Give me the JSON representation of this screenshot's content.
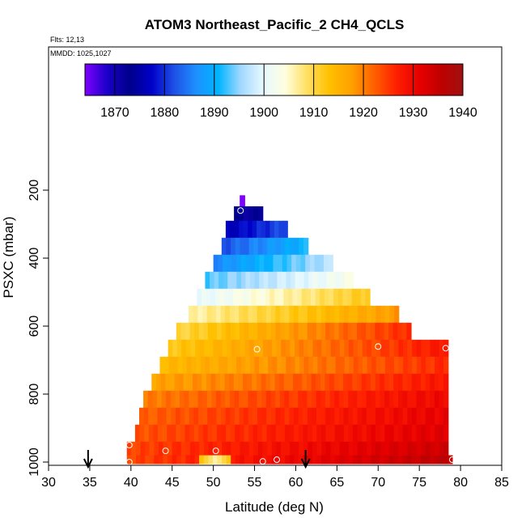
{
  "chart_data": {
    "type": "heatmap",
    "title": "ATOM3 Northeast_Pacific_2 CH4_QCLS",
    "flights_label": "Flts: 12,13",
    "mmdd_label": "MMDD: 1025,1027",
    "xlabel": "Latitude (deg N)",
    "ylabel": "PSXC (mbar)",
    "xlim": [
      30,
      85
    ],
    "ylim": [
      1000,
      50
    ],
    "y_reversed": true,
    "x_ticks": [
      "30",
      "35",
      "40",
      "45",
      "50",
      "55",
      "60",
      "65",
      "70",
      "75",
      "80",
      "85"
    ],
    "y_ticks": [
      "200",
      "400",
      "600",
      "800",
      "1000"
    ],
    "colorbar": {
      "range": [
        1864,
        1940
      ],
      "ticks": [
        "1870",
        "1880",
        "1890",
        "1900",
        "1910",
        "1920",
        "1930",
        "1940"
      ],
      "colors": [
        "#7f00ff",
        "#1a00c8",
        "#00008b",
        "#0000c8",
        "#1e50e6",
        "#1e90ff",
        "#00b4ff",
        "#a0d8ff",
        "#e6f8ff",
        "#ffffe0",
        "#ffe060",
        "#ffc000",
        "#ffa000",
        "#ff6000",
        "#ff2000",
        "#e80000",
        "#c00000",
        "#a01010"
      ]
    },
    "bands": [
      {
        "p": 230,
        "lat": [
          53.2,
          53.8
        ],
        "ch4": [
          1864,
          1864
        ]
      },
      {
        "p": 265,
        "lat": [
          52.5,
          56.0
        ],
        "ch4": [
          1872,
          1872
        ]
      },
      {
        "p": 315,
        "lat": [
          51.5,
          59.0
        ],
        "ch4": [
          1876,
          1882
        ]
      },
      {
        "p": 365,
        "lat": [
          51.0,
          61.5
        ],
        "ch4": [
          1882,
          1891
        ]
      },
      {
        "p": 415,
        "lat": [
          50.0,
          64.5
        ],
        "ch4": [
          1886,
          1897
        ]
      },
      {
        "p": 465,
        "lat": [
          49.0,
          67.0
        ],
        "ch4": [
          1893,
          1903
        ]
      },
      {
        "p": 515,
        "lat": [
          48.0,
          69.0
        ],
        "ch4": [
          1900,
          1912
        ]
      },
      {
        "p": 565,
        "lat": [
          47.0,
          72.5
        ],
        "ch4": [
          1906,
          1918
        ]
      },
      {
        "p": 615,
        "lat": [
          45.5,
          74.0
        ],
        "ch4": [
          1910,
          1926
        ]
      },
      {
        "p": 665,
        "lat": [
          44.5,
          78.5
        ],
        "ch4": [
          1912,
          1928
        ]
      },
      {
        "p": 715,
        "lat": [
          43.5,
          78.5
        ],
        "ch4": [
          1914,
          1926
        ]
      },
      {
        "p": 765,
        "lat": [
          42.5,
          78.5
        ],
        "ch4": [
          1917,
          1928
        ]
      },
      {
        "p": 815,
        "lat": [
          41.5,
          78.5
        ],
        "ch4": [
          1920,
          1930
        ]
      },
      {
        "p": 865,
        "lat": [
          41.0,
          78.5
        ],
        "ch4": [
          1922,
          1931
        ]
      },
      {
        "p": 915,
        "lat": [
          40.5,
          78.5
        ],
        "ch4": [
          1923,
          1932
        ]
      },
      {
        "p": 965,
        "lat": [
          39.5,
          78.5
        ],
        "ch4": [
          1924,
          1934
        ]
      },
      {
        "p": 995,
        "lat": [
          39.5,
          79.0
        ],
        "ch4": [
          1924,
          1936
        ]
      }
    ],
    "circle_markers": [
      {
        "lat": 53.3,
        "p": 260
      },
      {
        "lat": 55.3,
        "p": 668
      },
      {
        "lat": 70.0,
        "p": 660
      },
      {
        "lat": 78.2,
        "p": 665
      },
      {
        "lat": 39.8,
        "p": 950
      },
      {
        "lat": 44.2,
        "p": 967
      },
      {
        "lat": 50.3,
        "p": 967
      },
      {
        "lat": 39.8,
        "p": 1000
      },
      {
        "lat": 56.0,
        "p": 998
      },
      {
        "lat": 57.7,
        "p": 993
      },
      {
        "lat": 79.0,
        "p": 993
      }
    ],
    "arrow_latitudes": [
      34.8,
      61.2
    ]
  }
}
